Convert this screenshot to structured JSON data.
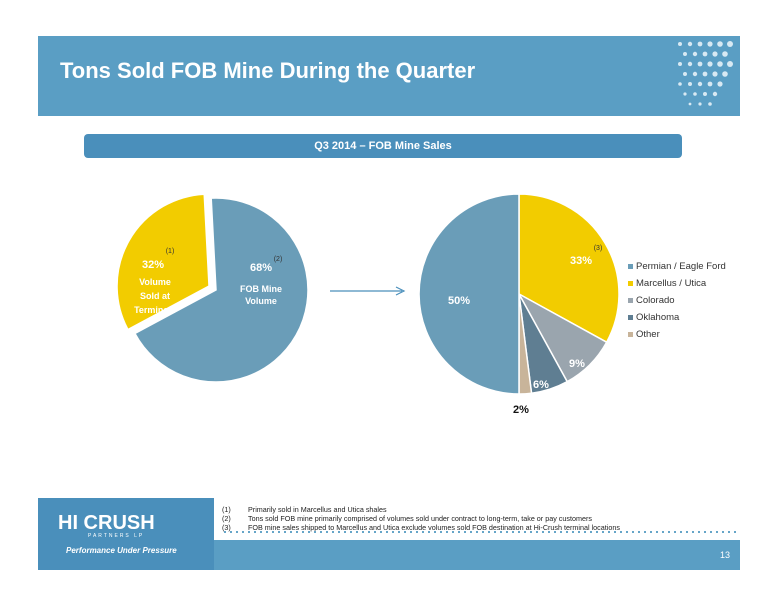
{
  "header": {
    "title": "Tons Sold FOB Mine During the Quarter"
  },
  "subtitle": "Q3 2014 – FOB Mine Sales",
  "colors": {
    "blue": "#6a9db8",
    "yellow": "#f2cc00",
    "gray": "#9aa5ae",
    "slate": "#5f7e92",
    "tan": "#c8b49a"
  },
  "chart_data": [
    {
      "type": "pie",
      "title": "",
      "slices": [
        {
          "label": "Volume Sold at Terminals",
          "value": 32,
          "display": "32%",
          "note": "(1)",
          "color": "#f2cc00"
        },
        {
          "label": "FOB Mine Volume",
          "value": 68,
          "display": "68%",
          "note": "(2)",
          "color": "#6a9db8"
        }
      ]
    },
    {
      "type": "pie",
      "title": "",
      "legend_position": "right",
      "slices": [
        {
          "label": "Permian / Eagle Ford",
          "value": 50,
          "display": "50%",
          "color": "#6a9db8"
        },
        {
          "label": "Marcellus / Utica",
          "value": 33,
          "display": "33%",
          "note": "(3)",
          "color": "#f2cc00"
        },
        {
          "label": "Colorado",
          "value": 9,
          "display": "9%",
          "color": "#9aa5ae"
        },
        {
          "label": "Oklahoma",
          "value": 6,
          "display": "6%",
          "color": "#5f7e92"
        },
        {
          "label": "Other",
          "value": 2,
          "display": "2%",
          "color": "#c8b49a"
        }
      ]
    }
  ],
  "footnotes": [
    {
      "num": "(1)",
      "text": "Primarily sold in Marcellus and Utica shales"
    },
    {
      "num": "(2)",
      "text": "Tons sold FOB mine primarily comprised of volumes sold under contract to long-term, take or pay customers"
    },
    {
      "num": "(3)",
      "text": "FOB mine sales shipped to Marcellus and Utica exclude volumes sold FOB destination at Hi-Crush terminal locations"
    }
  ],
  "logo": {
    "name": "HI CRUSH",
    "sub": "PARTNERS LP",
    "tagline": "Performance Under Pressure"
  },
  "page_number": "13"
}
